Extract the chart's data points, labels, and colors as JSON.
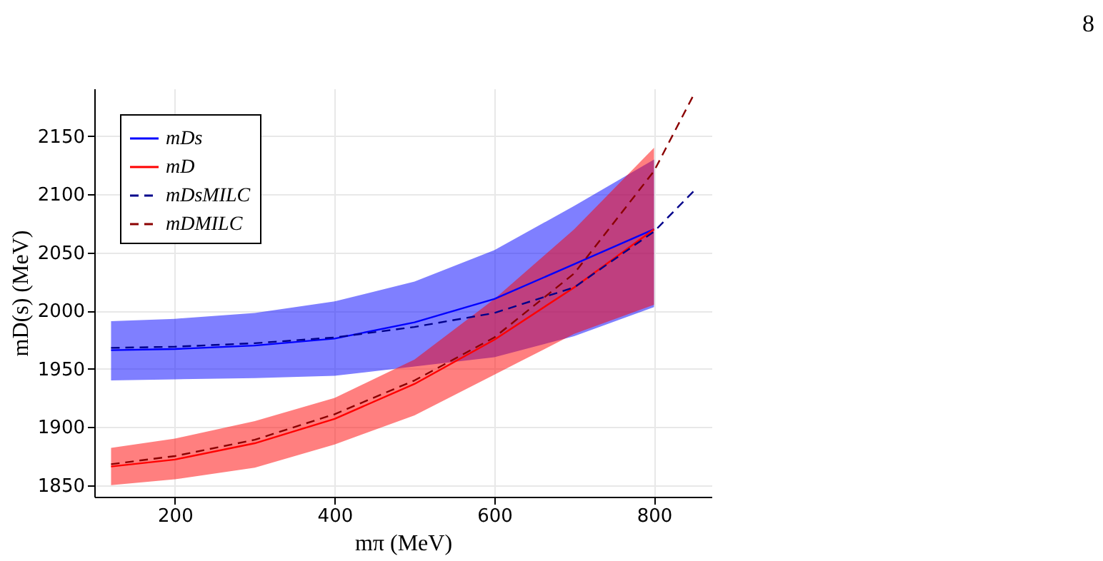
{
  "chart_data": {
    "type": "line",
    "xlabel": "mπ (MeV)",
    "ylabel": "mD(s) (MeV)",
    "xlim": [
      99,
      872
    ],
    "ylim": [
      1840,
      2191
    ],
    "xticks": [
      200,
      400,
      600,
      800
    ],
    "yticks": [
      1850,
      1900,
      1950,
      2000,
      2050,
      2100,
      2150
    ],
    "grid": true,
    "legend": "top left",
    "annotations": [
      "8"
    ],
    "series": [
      {
        "name": "mDs",
        "color": "#0000ff",
        "line_style": "solid",
        "x": [
          120,
          200,
          300,
          400,
          500,
          600,
          700,
          800
        ],
        "values": [
          1966,
          1967,
          1970,
          1976,
          1990,
          2010,
          2040,
          2070
        ],
        "lower": [
          1940,
          1941,
          1942,
          1944,
          1952,
          1960,
          1978,
          2003
        ],
        "upper": [
          1991,
          1993,
          1998,
          2008,
          2025,
          2052,
          2090,
          2130
        ]
      },
      {
        "name": "mD",
        "color": "#ff0000",
        "line_style": "solid",
        "x": [
          120,
          200,
          300,
          400,
          500,
          600,
          700,
          800
        ],
        "values": [
          1866,
          1872,
          1886,
          1907,
          1937,
          1975,
          2020,
          2070
        ],
        "lower": [
          1850,
          1855,
          1865,
          1885,
          1910,
          1945,
          1980,
          2005
        ],
        "upper": [
          1882,
          1890,
          1905,
          1925,
          1958,
          2010,
          2070,
          2140
        ]
      },
      {
        "name": "mDsMILC",
        "color": "#00008b",
        "line_style": "dashed",
        "x": [
          120,
          200,
          300,
          400,
          500,
          600,
          700,
          800,
          850
        ],
        "values": [
          1968,
          1969,
          1972,
          1977,
          1986,
          1998,
          2020,
          2068,
          2103
        ]
      },
      {
        "name": "mDMILC",
        "color": "#8b0000",
        "line_style": "dashed",
        "x": [
          120,
          200,
          300,
          400,
          500,
          600,
          700,
          800,
          850
        ],
        "values": [
          1868,
          1875,
          1889,
          1911,
          1940,
          1977,
          2032,
          2120,
          2186
        ]
      }
    ]
  }
}
